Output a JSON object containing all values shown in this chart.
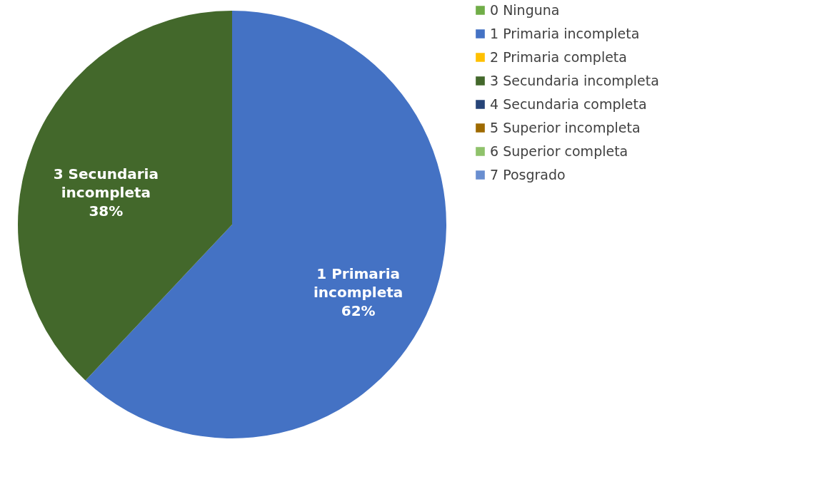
{
  "chart_data": {
    "type": "pie",
    "categories": [
      "0 Ninguna",
      "1 Primaria incompleta",
      "2 Primaria completa",
      "3 Secundaria incompleta",
      "4 Secundaria completa",
      "5 Superior incompleta",
      "6 Superior completa",
      "7 Posgrado"
    ],
    "values": [
      0,
      62,
      0,
      38,
      0,
      0,
      0,
      0
    ],
    "value_labels": [
      null,
      "62%",
      null,
      "38%",
      null,
      null,
      null,
      null
    ],
    "colors": [
      "#70ad47",
      "#4472c4",
      "#ffc000",
      "#43682b",
      "#264478",
      "#9e6a00",
      "#8fc26b",
      "#698ed0"
    ],
    "legend": "right"
  }
}
